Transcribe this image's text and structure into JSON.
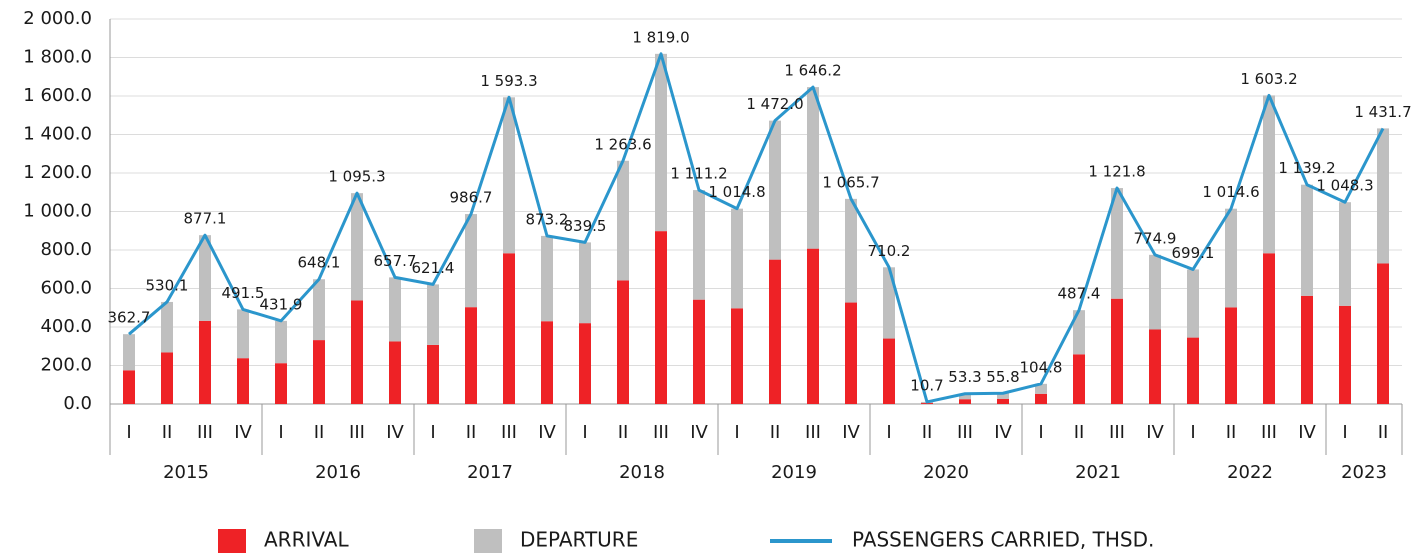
{
  "chart_data": {
    "type": "bar",
    "stacked": true,
    "groups": [
      {
        "label": "2015",
        "categories": [
          "I",
          "II",
          "III",
          "IV"
        ]
      },
      {
        "label": "2016",
        "categories": [
          "I",
          "II",
          "III",
          "IV"
        ]
      },
      {
        "label": "2017",
        "categories": [
          "I",
          "II",
          "III",
          "IV"
        ]
      },
      {
        "label": "2018",
        "categories": [
          "I",
          "II",
          "III",
          "IV"
        ]
      },
      {
        "label": "2019",
        "categories": [
          "I",
          "II",
          "III",
          "IV"
        ]
      },
      {
        "label": "2020",
        "categories": [
          "I",
          "II",
          "III",
          "IV"
        ]
      },
      {
        "label": "2021",
        "categories": [
          "I",
          "II",
          "III",
          "IV"
        ]
      },
      {
        "label": "2022",
        "categories": [
          "I",
          "II",
          "III",
          "IV"
        ]
      },
      {
        "label": "2023",
        "categories": [
          "I",
          "II"
        ]
      }
    ],
    "series": [
      {
        "name": "ARRIVAL",
        "color": "#ee2226",
        "values": [
          175,
          268,
          432,
          238,
          212,
          332,
          538,
          325,
          307,
          503,
          783,
          430,
          420,
          642,
          898,
          542,
          497,
          750,
          807,
          527,
          340,
          5,
          25,
          27,
          53,
          258,
          547,
          387,
          345,
          502,
          783,
          562,
          510,
          730
        ]
      },
      {
        "name": "DEPARTURE",
        "color": "#bfbfbf",
        "values": [
          187.7,
          262.1,
          445.1,
          253.5,
          219.9,
          316.1,
          557.3,
          332.7,
          314.4,
          483.7,
          810.3,
          443.2,
          419.5,
          621.6,
          921.0,
          569.2,
          517.8,
          722.0,
          839.2,
          538.7,
          370.2,
          5.7,
          28.3,
          28.8,
          51.8,
          229.4,
          574.8,
          387.9,
          354.1,
          512.6,
          820.2,
          577.2,
          538.3,
          701.7
        ]
      },
      {
        "name": "PASSENGERS CARRIED, THSD.",
        "color": "#2b96cc",
        "type": "line",
        "values": [
          362.7,
          530.1,
          877.1,
          491.5,
          431.9,
          648.1,
          1095.3,
          657.7,
          621.4,
          986.7,
          1593.3,
          873.2,
          839.5,
          1263.6,
          1819.0,
          1111.2,
          1014.8,
          1472.0,
          1646.2,
          1065.7,
          710.2,
          10.7,
          53.3,
          55.8,
          104.8,
          487.4,
          1121.8,
          774.9,
          699.1,
          1014.6,
          1603.2,
          1139.2,
          1048.3,
          1431.7
        ],
        "value_labels": [
          "362.7",
          "530.1",
          "877.1",
          "491.5",
          "431.9",
          "648.1",
          "1 095.3",
          "657.7",
          "621.4",
          "986.7",
          "1 593.3",
          "873.2",
          "839.5",
          "1 263.6",
          "1 819.0",
          "1 111.2",
          "1 014.8",
          "1 472.0",
          "1 646.2",
          "1 065.7",
          "710.2",
          "10.7",
          "53.3",
          "55.8",
          "104.8",
          "487.4",
          "1 121.8",
          "774.9",
          "699.1",
          "1 014.6",
          "1 603.2",
          "1 139.2",
          "1 048.3",
          "1 431.7"
        ]
      }
    ],
    "ylim": [
      0,
      2000
    ],
    "yticks": [
      {
        "value": 0,
        "label": "0.0"
      },
      {
        "value": 200,
        "label": "200.0"
      },
      {
        "value": 400,
        "label": "400.0"
      },
      {
        "value": 600,
        "label": "600.0"
      },
      {
        "value": 800,
        "label": "800.0"
      },
      {
        "value": 1000,
        "label": "1 000.0"
      },
      {
        "value": 1200,
        "label": "1 200.0"
      },
      {
        "value": 1400,
        "label": "1 400.0"
      },
      {
        "value": 1600,
        "label": "1 600.0"
      },
      {
        "value": 1800,
        "label": "1 800.0"
      },
      {
        "value": 2000,
        "label": "2 000.0"
      }
    ],
    "grid": true,
    "legend": "bottom"
  }
}
